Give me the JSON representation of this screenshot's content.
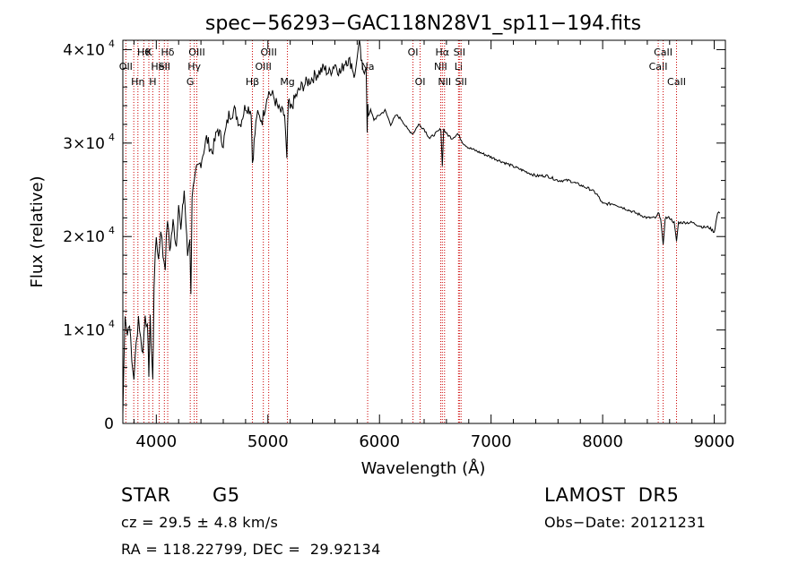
{
  "chart_data": {
    "type": "line",
    "title": "spec−56293−GAC118N28V1_sp11−194.fits",
    "xlabel": "Wavelength (Å)",
    "ylabel": "Flux (relative)",
    "xlim": [
      3700,
      9100
    ],
    "ylim": [
      0,
      41000
    ],
    "x_ticks": [
      4000,
      5000,
      6000,
      7000,
      8000,
      9000
    ],
    "y_ticks": [
      {
        "value": 0,
        "mantissa": "0",
        "exp": ""
      },
      {
        "value": 10000,
        "mantissa": "1×10",
        "exp": "4"
      },
      {
        "value": 20000,
        "mantissa": "2×10",
        "exp": "4"
      },
      {
        "value": 30000,
        "mantissa": "3×10",
        "exp": "4"
      },
      {
        "value": 40000,
        "mantissa": "4×10",
        "exp": "4"
      }
    ],
    "series": [
      {
        "x": [
          3700,
          3720,
          3740,
          3760,
          3780,
          3800,
          3820,
          3840,
          3860,
          3880,
          3900,
          3920,
          3933,
          3945,
          3960,
          3968,
          3980,
          4000,
          4020,
          4040,
          4060,
          4080,
          4100,
          4120,
          4150,
          4180,
          4200,
          4220,
          4250,
          4280,
          4300,
          4310,
          4320,
          4340,
          4360,
          4400,
          4450,
          4500,
          4550,
          4600,
          4650,
          4700,
          4750,
          4800,
          4850,
          4861,
          4900,
          4950,
          5000,
          5050,
          5100,
          5150,
          5170,
          5183,
          5200,
          5250,
          5300,
          5350,
          5400,
          5450,
          5500,
          5550,
          5600,
          5650,
          5700,
          5750,
          5780,
          5800,
          5820,
          5850,
          5880,
          5890,
          5896,
          5900,
          5920,
          5950,
          6000,
          6050,
          6100,
          6150,
          6200,
          6250,
          6300,
          6350,
          6400,
          6450,
          6500,
          6550,
          6563,
          6575,
          6600,
          6650,
          6700,
          6750,
          6800,
          6900,
          7000,
          7100,
          7200,
          7300,
          7400,
          7500,
          7600,
          7700,
          7800,
          7900,
          7950,
          8000,
          8100,
          8200,
          8300,
          8400,
          8480,
          8498,
          8520,
          8542,
          8560,
          8600,
          8640,
          8662,
          8680,
          8700,
          8800,
          8900,
          8950,
          9000,
          9030,
          9050
        ],
        "y": [
          1000,
          12000,
          9500,
          11000,
          6500,
          5000,
          8500,
          11500,
          9000,
          7500,
          12000,
          10000,
          5500,
          11000,
          7000,
          4500,
          15000,
          20000,
          17500,
          21000,
          18000,
          17000,
          22000,
          18500,
          21500,
          19000,
          24000,
          20500,
          25000,
          18000,
          20000,
          13500,
          24500,
          25500,
          27000,
          28000,
          30500,
          29000,
          31500,
          30000,
          33000,
          33500,
          32000,
          34000,
          33500,
          28000,
          33000,
          32500,
          35500,
          35000,
          33500,
          33000,
          28000,
          34500,
          33500,
          35000,
          36000,
          36500,
          37000,
          37500,
          38000,
          37500,
          38500,
          37500,
          39000,
          38500,
          37000,
          39500,
          40500,
          37500,
          38500,
          31000,
          34500,
          33000,
          33500,
          32500,
          33000,
          33500,
          32000,
          33000,
          32500,
          31500,
          31000,
          32000,
          31500,
          30500,
          31000,
          31500,
          27500,
          31500,
          31000,
          30500,
          31000,
          30000,
          29500,
          29000,
          28500,
          28000,
          27500,
          27000,
          26500,
          26500,
          26000,
          26000,
          25500,
          25000,
          24500,
          23500,
          23500,
          23000,
          22500,
          22000,
          22000,
          22500,
          22000,
          19000,
          22000,
          22000,
          21500,
          19500,
          21500,
          21500,
          21500,
          21000,
          21000,
          20500,
          22500,
          22500
        ]
      }
    ],
    "lines": [
      {
        "x": 3727,
        "label": "OII",
        "row": 2
      },
      {
        "x": 3798,
        "label": "",
        "row": 0
      },
      {
        "x": 3835,
        "label": "Hη",
        "row": 3
      },
      {
        "x": 3889,
        "label": "Hθ",
        "row": 1
      },
      {
        "x": 3933,
        "label": "K",
        "row": 1
      },
      {
        "x": 3968,
        "label": "H",
        "row": 3
      },
      {
        "x": 4026,
        "label": "HeI",
        "row": 2
      },
      {
        "x": 4072,
        "label": "SII",
        "row": 2
      },
      {
        "x": 4102,
        "label": "Hδ",
        "row": 1
      },
      {
        "x": 4304,
        "label": "G",
        "row": 3
      },
      {
        "x": 4340,
        "label": "Hγ",
        "row": 2
      },
      {
        "x": 4363,
        "label": "OIII",
        "row": 1
      },
      {
        "x": 4861,
        "label": "Hβ",
        "row": 3
      },
      {
        "x": 4959,
        "label": "OIII",
        "row": 2
      },
      {
        "x": 5007,
        "label": "OIII",
        "row": 1
      },
      {
        "x": 5175,
        "label": "Mg",
        "row": 3
      },
      {
        "x": 5894,
        "label": "Na",
        "row": 2
      },
      {
        "x": 6300,
        "label": "OI",
        "row": 1
      },
      {
        "x": 6364,
        "label": "OI",
        "row": 3
      },
      {
        "x": 6548,
        "label": "NII",
        "row": 2
      },
      {
        "x": 6563,
        "label": "Hα",
        "row": 1
      },
      {
        "x": 6583,
        "label": "NII",
        "row": 3
      },
      {
        "x": 6708,
        "label": "Li",
        "row": 2
      },
      {
        "x": 6716,
        "label": "SII",
        "row": 1
      },
      {
        "x": 6731,
        "label": "SII",
        "row": 3
      },
      {
        "x": 8498,
        "label": "CaII",
        "row": 2
      },
      {
        "x": 8542,
        "label": "CaII",
        "row": 1
      },
      {
        "x": 8662,
        "label": "CaII",
        "row": 3
      }
    ],
    "line_color": "#cc0000",
    "grid": false,
    "legend": "none"
  },
  "info": {
    "class": "STAR",
    "subclass": "G5",
    "survey": "LAMOST  DR5",
    "cz": "cz = 29.5 ± 4.8 km/s",
    "obs_date": "Obs−Date: 20121231",
    "coords": "RA = 118.22799, DEC =  29.92134"
  }
}
